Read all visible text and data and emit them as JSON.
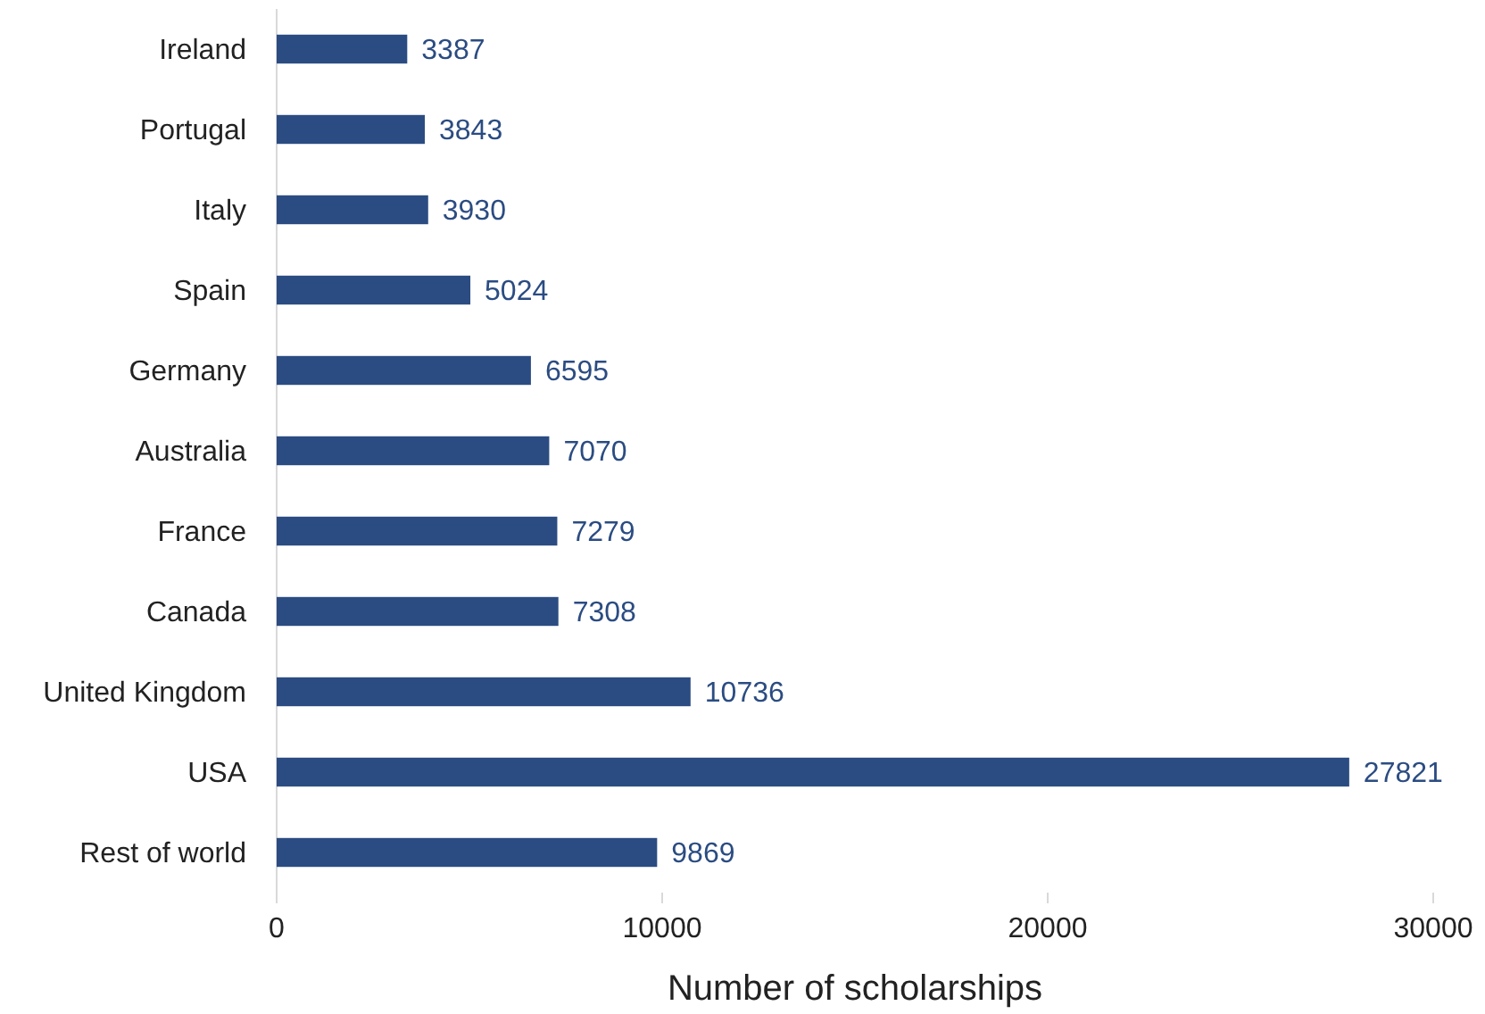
{
  "chart_data": {
    "type": "bar",
    "orientation": "horizontal",
    "xlabel": "Number of scholarships",
    "categories": [
      "Ireland",
      "Portugal",
      "Italy",
      "Spain",
      "Germany",
      "Australia",
      "France",
      "Canada",
      "United Kingdom",
      "USA",
      "Rest of world"
    ],
    "values": [
      3387,
      3843,
      3930,
      5024,
      6595,
      7070,
      7279,
      7308,
      10736,
      27821,
      9869
    ],
    "color": "#2b4c82",
    "xlim": [
      0,
      30000
    ],
    "xticks": [
      0,
      10000,
      20000,
      30000
    ],
    "data_labels": true,
    "grid": false
  }
}
